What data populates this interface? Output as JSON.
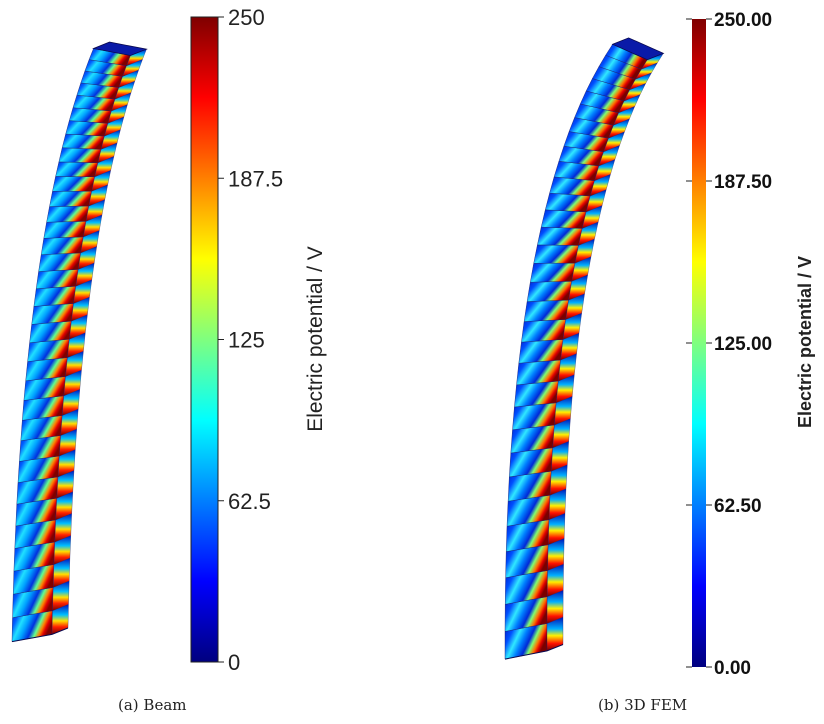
{
  "colormap": [
    "#00007f",
    "#0000ff",
    "#007fff",
    "#00ffff",
    "#7fff7f",
    "#ffff00",
    "#ff7f00",
    "#ff0000",
    "#7f0000"
  ],
  "panels": [
    {
      "caption": "(a) Beam",
      "colorbar": {
        "title": "Electric potential / V",
        "min": 0,
        "max": 250,
        "ticks": [
          {
            "value": 0,
            "label": "0"
          },
          {
            "value": 62.5,
            "label": "62.5"
          },
          {
            "value": 125,
            "label": "125"
          },
          {
            "value": 187.5,
            "label": "187.5"
          },
          {
            "value": 250,
            "label": "250"
          }
        ]
      }
    },
    {
      "caption": "(b) 3D FEM",
      "colorbar": {
        "title": "Electric potential / V",
        "min": 0,
        "max": 250,
        "ticks": [
          {
            "value": 0,
            "label": "0.00"
          },
          {
            "value": 62.5,
            "label": "62.50"
          },
          {
            "value": 125,
            "label": "125.00"
          },
          {
            "value": 187.5,
            "label": "187.50"
          },
          {
            "value": 250,
            "label": "250.00"
          }
        ]
      }
    }
  ]
}
